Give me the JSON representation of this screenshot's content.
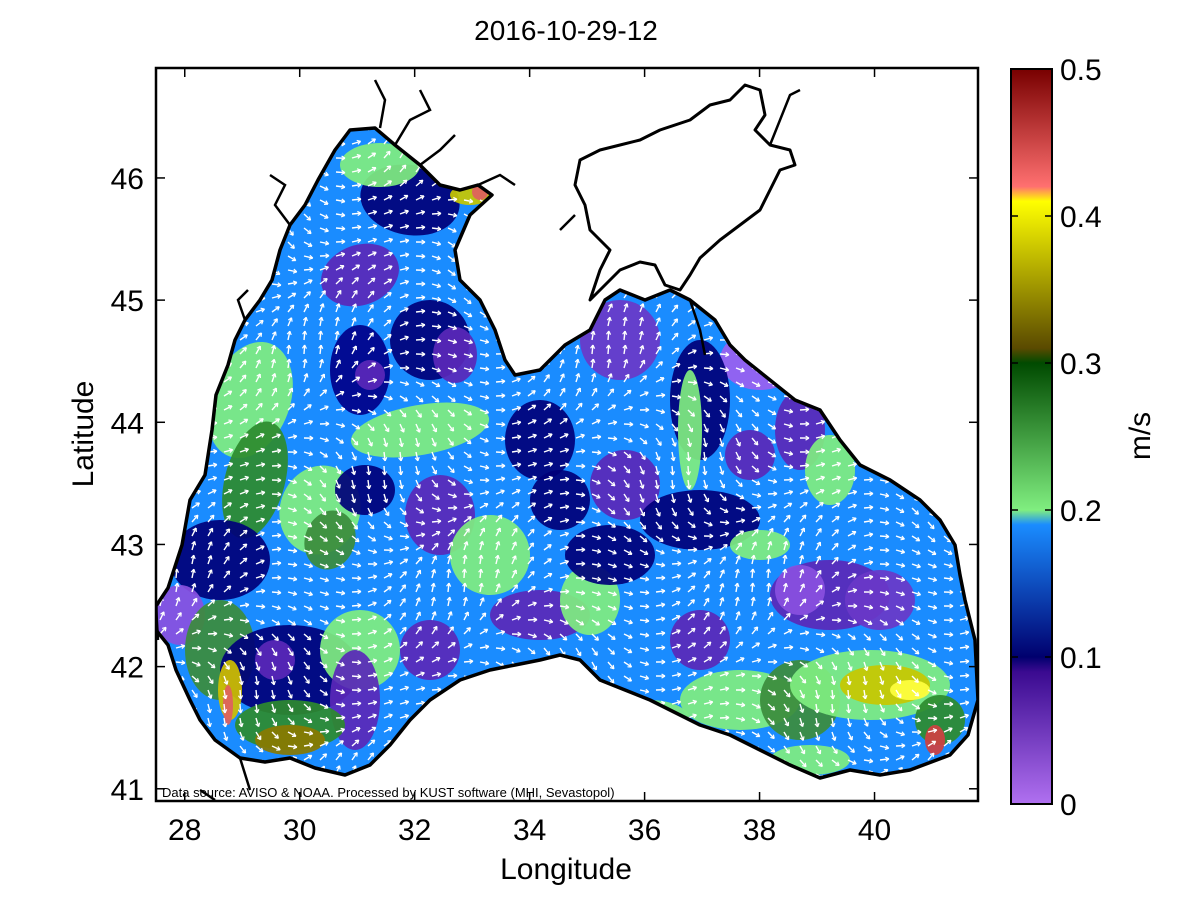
{
  "title": "2016-10-29-12",
  "xlabel": "Longitude",
  "ylabel": "Latitude",
  "x_ticks": [
    "28",
    "30",
    "32",
    "34",
    "36",
    "38",
    "40"
  ],
  "y_ticks": [
    "41",
    "42",
    "43",
    "44",
    "45",
    "46"
  ],
  "x_range": [
    27.5,
    41.8
  ],
  "y_range": [
    40.9,
    46.9
  ],
  "colorbar": {
    "label": "m/s",
    "ticks": [
      "0",
      "0.1",
      "0.2",
      "0.3",
      "0.4",
      "0.5"
    ],
    "range": [
      0,
      0.5
    ],
    "stops": [
      {
        "v": 0.0,
        "c": "#b070f0"
      },
      {
        "v": 0.09,
        "c": "#3a0a90"
      },
      {
        "v": 0.1,
        "c": "#00006e"
      },
      {
        "v": 0.19,
        "c": "#1a8cff"
      },
      {
        "v": 0.2,
        "c": "#80ee80"
      },
      {
        "v": 0.3,
        "c": "#004a00"
      },
      {
        "v": 0.31,
        "c": "#5a4a00"
      },
      {
        "v": 0.41,
        "c": "#ffff00"
      },
      {
        "v": 0.42,
        "c": "#ff7070"
      },
      {
        "v": 0.5,
        "c": "#780000"
      }
    ]
  },
  "source_note": "Data source: AVISO & NOAA. Processed by KUST software (MHI, Sevastopol)",
  "colors": {
    "land": "#ffffff",
    "coast": "#000000",
    "arrows": "#ffffff"
  }
}
